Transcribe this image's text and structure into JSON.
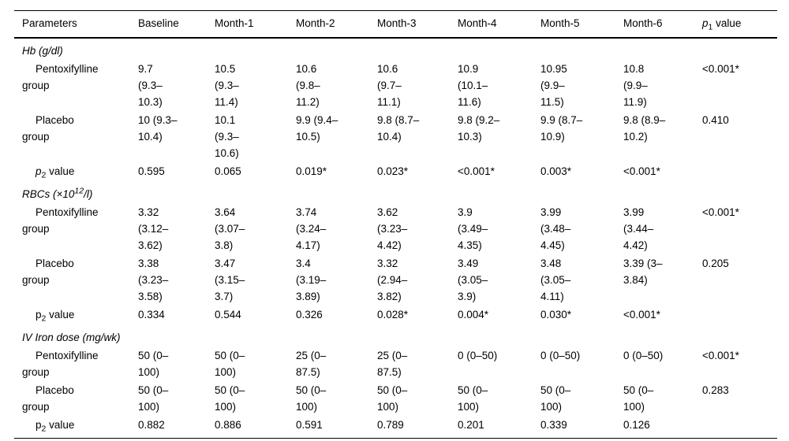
{
  "table": {
    "columns": [
      "Parameters",
      "Baseline",
      "Month-1",
      "Month-2",
      "Month-3",
      "Month-4",
      "Month-5",
      "Month-6"
    ],
    "p1_header": {
      "p": "p",
      "sub": "1",
      "rest": " value"
    },
    "colors": {
      "text": "#000000",
      "background": "#ffffff",
      "rule": "#000000"
    },
    "sections": [
      {
        "title": {
          "pre": "Hb (g/dl)",
          "sup": "",
          "post": ""
        },
        "pentox": {
          "label": "Pentoxifylline\ngroup",
          "cells": [
            "9.7\n(9.3–\n10.3)",
            "10.5\n(9.3–\n11.4)",
            "10.6\n(9.8–\n11.2)",
            "10.6\n(9.7–\n11.1)",
            "10.9\n(10.1–\n11.6)",
            "10.95\n(9.9–\n11.5)",
            "10.8\n(9.9–\n11.9)"
          ],
          "p1": "<0.001*"
        },
        "placebo": {
          "label": "Placebo\ngroup",
          "cells": [
            "10 (9.3–\n10.4)",
            "10.1\n(9.3–\n10.6)",
            "9.9 (9.4–\n10.5)",
            "9.8 (8.7–\n10.4)",
            "9.8 (9.2–\n10.3)",
            "9.9 (8.7–\n10.9)",
            "9.8 (8.9–\n10.2)"
          ],
          "p1": "0.410"
        },
        "p2": {
          "label": {
            "p": "p",
            "sub": "2",
            "rest": " value"
          },
          "cells": [
            "0.595",
            "0.065",
            "0.019*",
            "0.023*",
            "<0.001*",
            "0.003*",
            "<0.001*"
          ],
          "p1": ""
        }
      },
      {
        "title": {
          "pre": "RBCs (×10",
          "sup": "12",
          "post": "/l)"
        },
        "pentox": {
          "label": "Pentoxifylline\ngroup",
          "cells": [
            "3.32\n(3.12–\n3.62)",
            "3.64\n(3.07–\n3.8)",
            "3.74\n(3.24–\n4.17)",
            "3.62\n(3.23–\n4.42)",
            "3.9\n(3.49–\n4.35)",
            "3.99\n(3.48–\n4.45)",
            "3.99\n(3.44–\n4.42)"
          ],
          "p1": "<0.001*"
        },
        "placebo": {
          "label": "Placebo\ngroup",
          "cells": [
            "3.38\n(3.23–\n3.58)",
            "3.47\n(3.15–\n3.7)",
            "3.4\n(3.19–\n3.89)",
            "3.32\n(2.94–\n3.82)",
            "3.49\n(3.05–\n3.9)",
            "3.48\n(3.05–\n4.11)",
            "3.39 (3–\n3.84)"
          ],
          "p1": "0.205"
        },
        "p2": {
          "label": {
            "p": "p",
            "sub": "2",
            "rest": " value"
          },
          "cells": [
            "0.334",
            "0.544",
            "0.326",
            "0.028*",
            "0.004*",
            "0.030*",
            "<0.001*"
          ],
          "p1": ""
        }
      },
      {
        "title": {
          "pre": "IV Iron dose (mg/wk)",
          "sup": "",
          "post": ""
        },
        "pentox": {
          "label": "Pentoxifylline\ngroup",
          "cells": [
            "50 (0–\n100)",
            "50 (0–\n100)",
            "25 (0–\n87.5)",
            "25 (0–\n87.5)",
            "0 (0–50)",
            "0 (0–50)",
            "0 (0–50)"
          ],
          "p1": "<0.001*"
        },
        "placebo": {
          "label": "Placebo\ngroup",
          "cells": [
            "50 (0–\n100)",
            "50 (0–\n100)",
            "50 (0–\n100)",
            "50 (0–\n100)",
            "50 (0–\n100)",
            "50 (0–\n100)",
            "50 (0–\n100)"
          ],
          "p1": "0.283"
        },
        "p2": {
          "label": {
            "p": "p",
            "sub": "2",
            "rest": " value"
          },
          "cells": [
            "0.882",
            "0.886",
            "0.591",
            "0.789",
            "0.201",
            "0.339",
            "0.126"
          ],
          "p1": ""
        }
      }
    ]
  }
}
